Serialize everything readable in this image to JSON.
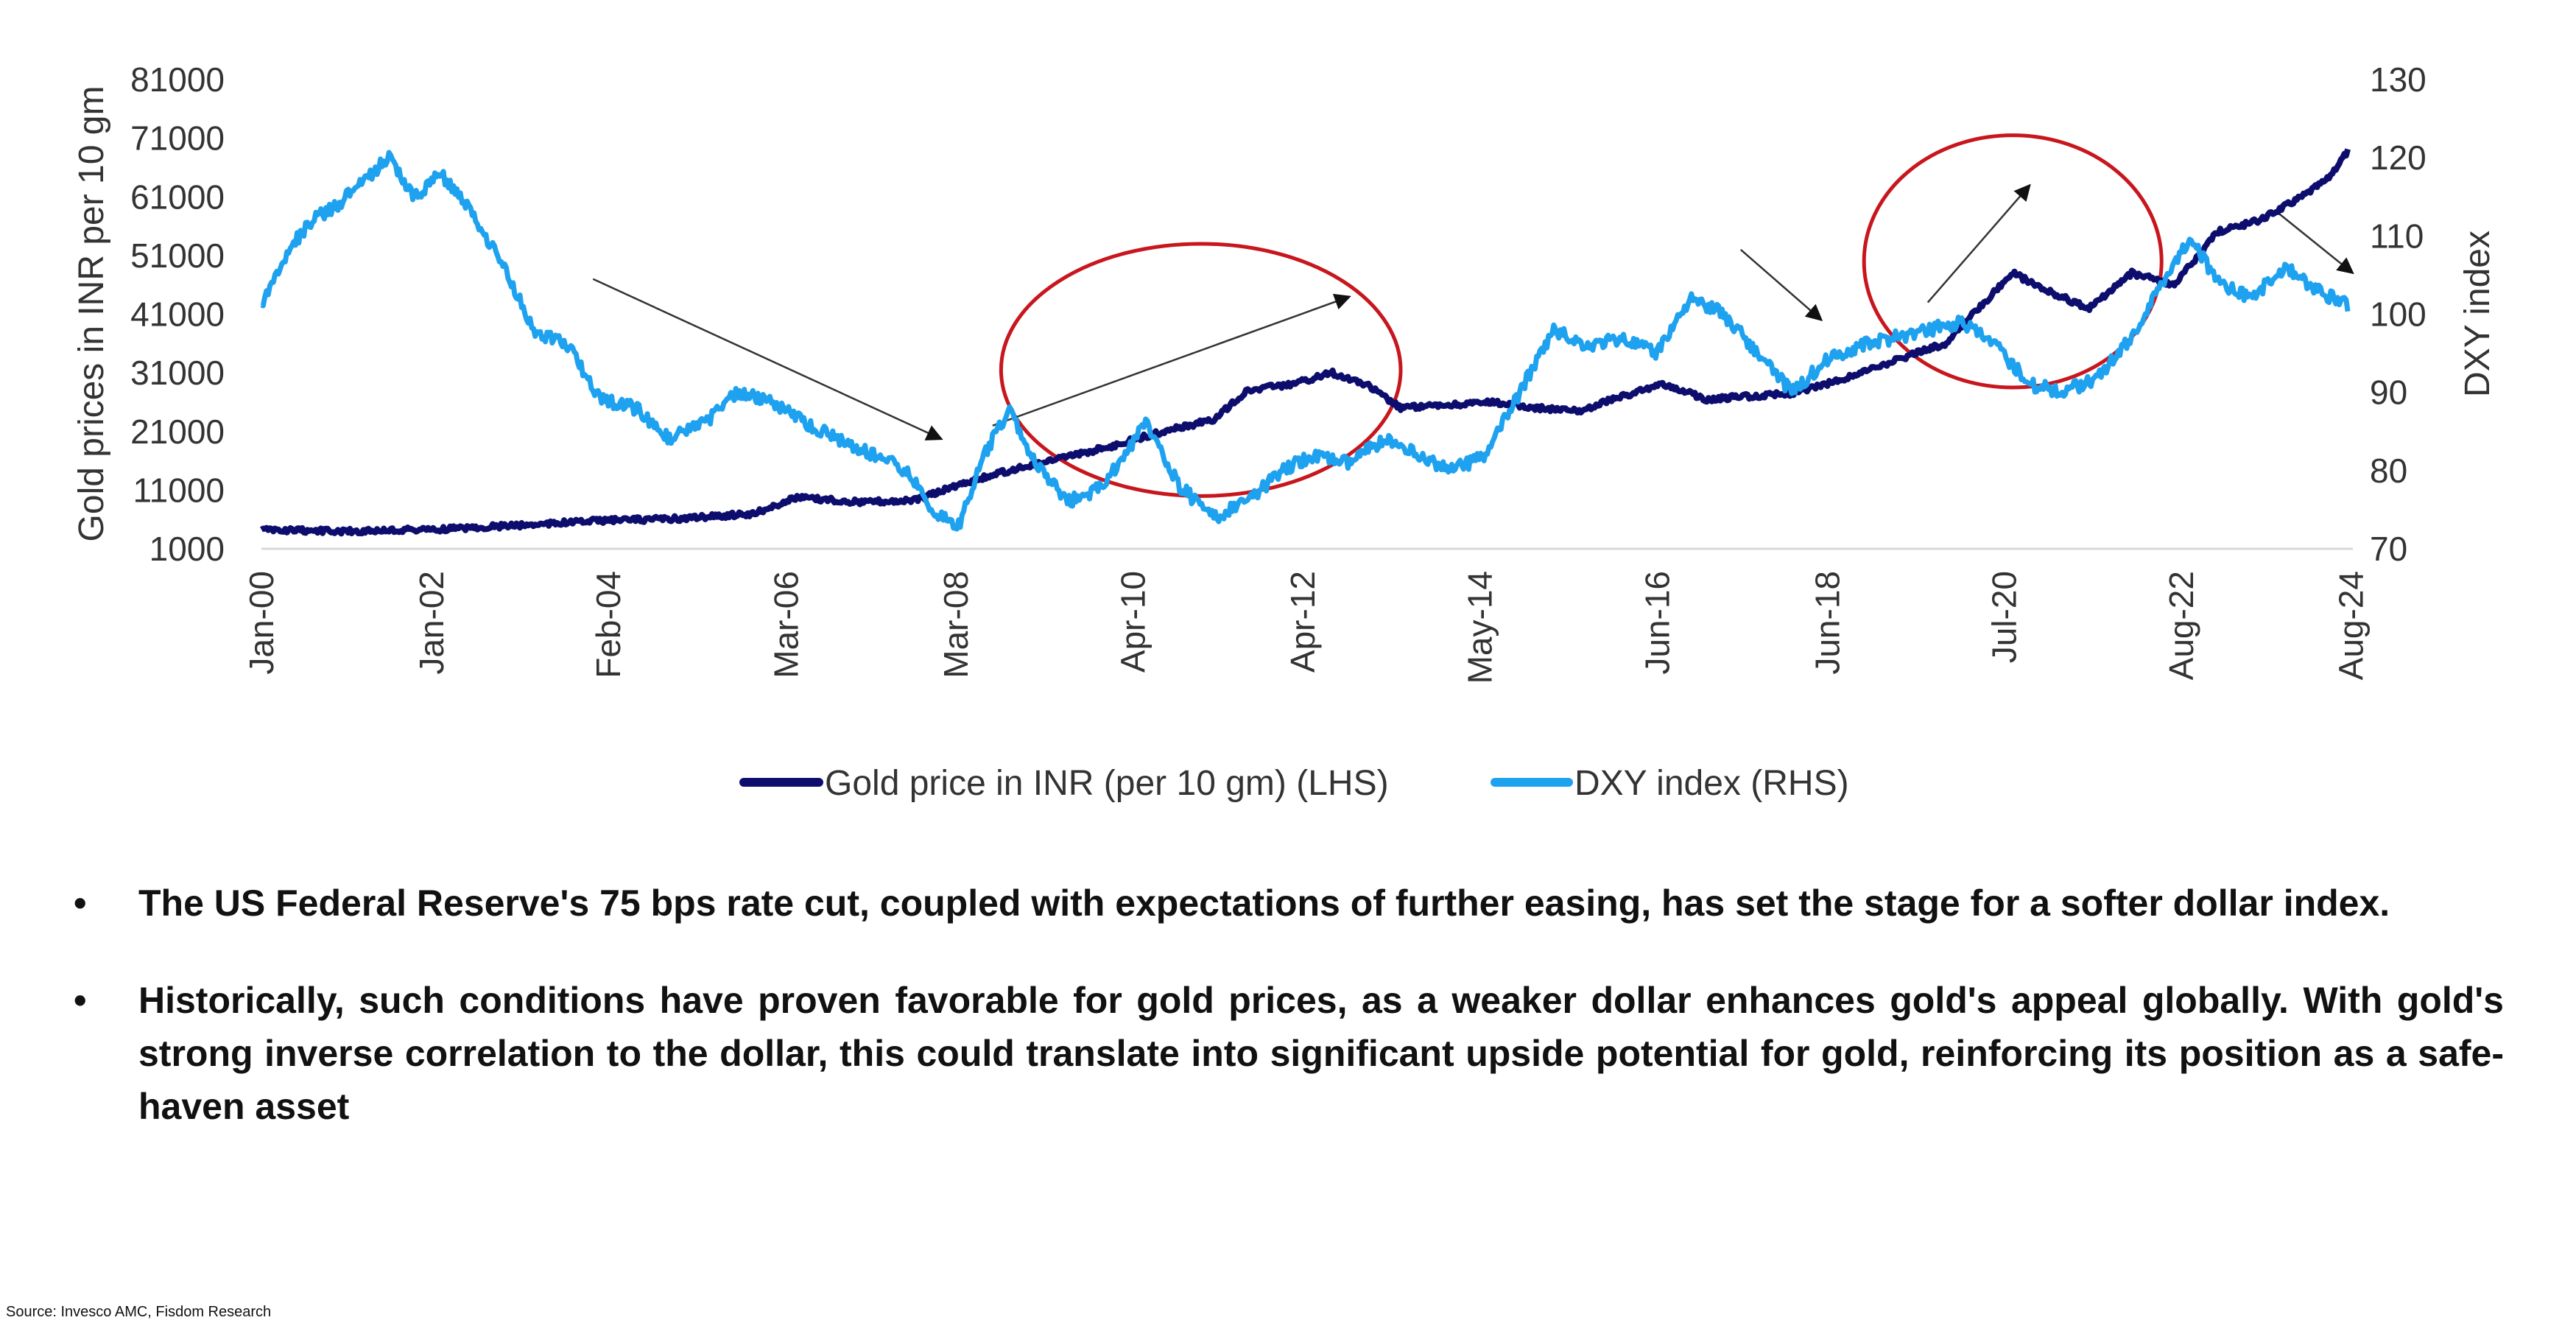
{
  "chart_data": {
    "type": "line",
    "y_left_label": "Gold prices in INR per 10 gm",
    "y_right_label": "DXY index",
    "y_left_range": [
      1000,
      81000
    ],
    "y_left_ticks": [
      1000,
      11000,
      21000,
      31000,
      41000,
      51000,
      61000,
      71000,
      81000
    ],
    "y_right_range": [
      70,
      130
    ],
    "y_right_ticks": [
      70,
      80,
      90,
      100,
      110,
      120,
      130
    ],
    "x_range": [
      2000.0,
      2024.6
    ],
    "x_ticks": [
      {
        "label": "Jan-00",
        "x": 2000.0
      },
      {
        "label": "Jan-02",
        "x": 2002.0
      },
      {
        "label": "Feb-04",
        "x": 2004.08
      },
      {
        "label": "Mar-06",
        "x": 2006.17
      },
      {
        "label": "Mar-08",
        "x": 2008.17
      },
      {
        "label": "Apr-10",
        "x": 2010.25
      },
      {
        "label": "Apr-12",
        "x": 2012.25
      },
      {
        "label": "May-14",
        "x": 2014.33
      },
      {
        "label": "Jun-16",
        "x": 2016.42
      },
      {
        "label": "Jun-18",
        "x": 2018.42
      },
      {
        "label": "Jul-20",
        "x": 2020.5
      },
      {
        "label": "Aug-22",
        "x": 2022.58
      },
      {
        "label": "Aug-24",
        "x": 2024.58
      }
    ],
    "legend_position": "bottom",
    "grid": false,
    "series": [
      {
        "name": "Gold price in INR (per 10 gm) (LHS)",
        "axis": "left",
        "color": "#0d0d6e",
        "x": [
          2000.0,
          2001.0,
          2002.0,
          2003.0,
          2004.0,
          2005.0,
          2005.8,
          2006.3,
          2007.0,
          2007.7,
          2008.2,
          2008.7,
          2009.3,
          2010.0,
          2010.6,
          2011.2,
          2011.6,
          2012.1,
          2012.6,
          2013.0,
          2013.4,
          2013.9,
          2014.5,
          2015.0,
          2015.5,
          2016.0,
          2016.5,
          2017.0,
          2017.5,
          2018.0,
          2018.5,
          2019.0,
          2019.4,
          2019.8,
          2020.2,
          2020.6,
          2021.0,
          2021.5,
          2022.0,
          2022.5,
          2023.0,
          2023.5,
          2024.0,
          2024.3,
          2024.55
        ],
        "y": [
          4200,
          4000,
          4300,
          5000,
          5800,
          6200,
          7000,
          9800,
          9000,
          9300,
          12000,
          14000,
          16000,
          18500,
          21000,
          23000,
          28000,
          29000,
          31000,
          29000,
          25000,
          25500,
          26000,
          25000,
          24500,
          27000,
          29000,
          26500,
          27000,
          27500,
          29500,
          32000,
          34000,
          36000,
          42000,
          48000,
          45000,
          42000,
          48000,
          46000,
          55000,
          57000,
          61000,
          64000,
          69000
        ]
      },
      {
        "name": "DXY index (RHS)",
        "axis": "right",
        "color": "#1ea2f0",
        "x": [
          2000.0,
          2000.3,
          2000.6,
          2000.9,
          2001.2,
          2001.5,
          2001.8,
          2002.1,
          2002.4,
          2002.8,
          2003.2,
          2003.6,
          2004.0,
          2004.4,
          2004.8,
          2005.2,
          2005.6,
          2006.0,
          2006.4,
          2006.8,
          2007.2,
          2007.6,
          2007.9,
          2008.2,
          2008.5,
          2008.8,
          2009.1,
          2009.5,
          2009.9,
          2010.4,
          2010.8,
          2011.2,
          2011.6,
          2012.0,
          2012.4,
          2012.8,
          2013.2,
          2013.6,
          2014.0,
          2014.4,
          2014.8,
          2015.2,
          2015.6,
          2016.0,
          2016.4,
          2016.8,
          2017.2,
          2017.6,
          2018.0,
          2018.4,
          2018.8,
          2019.2,
          2019.6,
          2020.0,
          2020.4,
          2020.8,
          2021.2,
          2021.6,
          2022.0,
          2022.4,
          2022.7,
          2023.0,
          2023.4,
          2023.8,
          2024.2,
          2024.55
        ],
        "y": [
          101,
          108,
          112,
          114,
          117,
          120,
          115,
          118,
          114,
          107,
          98,
          96,
          89,
          88,
          84,
          86,
          90,
          89,
          86,
          84,
          82,
          80,
          75,
          73,
          82,
          88,
          81,
          76,
          78,
          86,
          78,
          74,
          76,
          80,
          82,
          81,
          84,
          82,
          80,
          82,
          90,
          98,
          96,
          97,
          95,
          102,
          100,
          95,
          90,
          94,
          96,
          97,
          98,
          99,
          96,
          91,
          90,
          92,
          97,
          105,
          110,
          104,
          102,
          106,
          103,
          101
        ]
      }
    ],
    "annotations": {
      "ellipses": [
        {
          "cx": 2011.05,
          "cy": 31500,
          "rx_years": 2.35,
          "ry_value": 21500
        },
        {
          "cx": 2020.6,
          "cy": 50000,
          "rx_years": 1.75,
          "ry_value": 21500
        }
      ],
      "arrows": [
        {
          "x1": 2003.9,
          "y1": 47000,
          "x2": 2008.0,
          "y2": 19700,
          "head": "filled"
        },
        {
          "x1": 2008.6,
          "y1": 22000,
          "x2": 2012.8,
          "y2": 44000,
          "head": "filled"
        },
        {
          "x1": 2017.4,
          "y1": 52000,
          "x2": 2018.35,
          "y2": 40000,
          "head": "filled"
        },
        {
          "x1": 2019.6,
          "y1": 43000,
          "x2": 2020.8,
          "y2": 63000,
          "head": "filled"
        },
        {
          "x1": 2023.7,
          "y1": 58500,
          "x2": 2024.6,
          "y2": 48000,
          "head": "filled"
        }
      ]
    }
  },
  "bullets": [
    "The US Federal Reserve's 75 bps rate cut, coupled with expectations of further easing, has set the stage for a softer dollar index.",
    "Historically, such conditions have proven favorable for gold prices, as a weaker dollar enhances gold's appeal globally. With gold's strong inverse correlation to the dollar, this could translate into significant upside potential for gold, reinforcing its position as a safe-haven asset"
  ],
  "bullet_symbol": "•",
  "source": "Source: Invesco AMC, Fisdom Research"
}
